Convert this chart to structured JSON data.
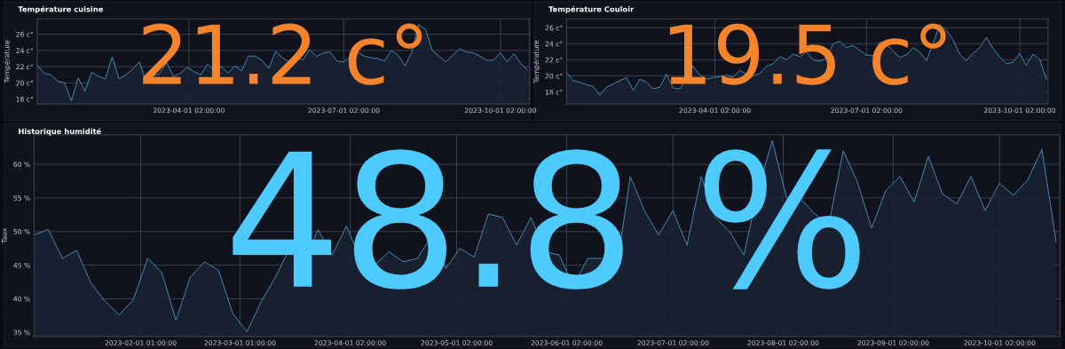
{
  "chart_data": [
    {
      "type": "area",
      "title": "Température cuisine",
      "ylabel": "Température",
      "annotations": [
        "21.2 c°"
      ],
      "x": [
        "2023-01-02",
        "2023-01-06",
        "2023-01-10",
        "2023-01-14",
        "2023-01-18",
        "2023-01-22",
        "2023-01-26",
        "2023-01-30",
        "2023-02-03",
        "2023-02-07",
        "2023-02-11",
        "2023-02-15",
        "2023-02-19",
        "2023-02-23",
        "2023-02-27",
        "2023-03-03",
        "2023-03-07",
        "2023-03-11",
        "2023-03-15",
        "2023-03-19",
        "2023-03-23",
        "2023-03-27",
        "2023-03-31",
        "2023-04-04",
        "2023-04-08",
        "2023-04-12",
        "2023-04-16",
        "2023-04-20",
        "2023-04-24",
        "2023-04-28",
        "2023-05-02",
        "2023-05-06",
        "2023-05-10",
        "2023-05-14",
        "2023-05-18",
        "2023-05-22",
        "2023-05-26",
        "2023-05-30",
        "2023-06-03",
        "2023-06-07",
        "2023-06-11",
        "2023-06-15",
        "2023-06-19",
        "2023-06-23",
        "2023-06-27",
        "2023-07-01",
        "2023-07-05",
        "2023-07-09",
        "2023-07-13",
        "2023-07-17",
        "2023-07-21",
        "2023-07-25",
        "2023-07-29",
        "2023-08-02",
        "2023-08-06",
        "2023-08-10",
        "2023-08-14",
        "2023-08-18",
        "2023-08-22",
        "2023-08-26",
        "2023-08-30",
        "2023-09-03",
        "2023-09-07",
        "2023-09-11",
        "2023-09-15",
        "2023-09-19",
        "2023-09-23",
        "2023-09-27",
        "2023-10-01",
        "2023-10-05",
        "2023-10-09",
        "2023-10-13",
        "2023-10-17"
      ],
      "series": [
        {
          "color": "#4a9fd0",
          "values": [
            22.2,
            21.2,
            21.0,
            20.2,
            20.0,
            17.8,
            20.6,
            19.0,
            21.3,
            20.8,
            20.5,
            23.2,
            20.5,
            21.0,
            21.7,
            22.6,
            20.0,
            20.8,
            21.2,
            22.5,
            20.8,
            21.2,
            21.9,
            21.4,
            21.0,
            22.3,
            21.5,
            22.0,
            21.2,
            22.1,
            21.5,
            23.3,
            23.3,
            22.8,
            21.8,
            23.9,
            23.1,
            22.6,
            23.2,
            22.8,
            24.1,
            23.3,
            23.7,
            23.8,
            22.7,
            22.6,
            23.2,
            23.8,
            23.3,
            23.1,
            23.0,
            22.7,
            24.0,
            23.4,
            22.1,
            23.8,
            27.2,
            26.6,
            24.0,
            23.3,
            22.6,
            23.4,
            24.2,
            23.8,
            23.7,
            23.3,
            22.8,
            22.8,
            23.7,
            22.6,
            23.6,
            22.4,
            21.6
          ]
        }
      ],
      "xlim": [
        "2023-01-02",
        "2023-10-18"
      ],
      "xticks": [
        {
          "value": "2023-04-01T02:00",
          "label": "2023-04-01 02:00:00"
        },
        {
          "value": "2023-07-01T02:00",
          "label": "2023-07-01 02:00:00"
        },
        {
          "value": "2023-10-01T02:00",
          "label": "2023-10-01 02:00:00"
        }
      ],
      "ylim": [
        17.4,
        27.9
      ],
      "yticks": [
        {
          "value": 18,
          "label": "18 c°"
        },
        {
          "value": 20,
          "label": "20 c°"
        },
        {
          "value": 22,
          "label": "22 c°"
        },
        {
          "value": 24,
          "label": "24 c°"
        },
        {
          "value": 26,
          "label": "26 c°"
        }
      ],
      "grid": true
    },
    {
      "type": "area",
      "title": "Température Couloir",
      "ylabel": "Température",
      "annotations": [
        "19.5 c°"
      ],
      "x": [
        "2023-01-02",
        "2023-01-06",
        "2023-01-10",
        "2023-01-14",
        "2023-01-18",
        "2023-01-22",
        "2023-01-26",
        "2023-01-30",
        "2023-02-03",
        "2023-02-07",
        "2023-02-11",
        "2023-02-15",
        "2023-02-19",
        "2023-02-23",
        "2023-02-27",
        "2023-03-03",
        "2023-03-07",
        "2023-03-11",
        "2023-03-15",
        "2023-03-19",
        "2023-03-23",
        "2023-03-27",
        "2023-03-31",
        "2023-04-04",
        "2023-04-08",
        "2023-04-12",
        "2023-04-16",
        "2023-04-20",
        "2023-04-24",
        "2023-04-28",
        "2023-05-02",
        "2023-05-06",
        "2023-05-10",
        "2023-05-14",
        "2023-05-18",
        "2023-05-22",
        "2023-05-26",
        "2023-05-30",
        "2023-06-03",
        "2023-06-07",
        "2023-06-11",
        "2023-06-15",
        "2023-06-19",
        "2023-06-23",
        "2023-06-27",
        "2023-07-01",
        "2023-07-05",
        "2023-07-09",
        "2023-07-13",
        "2023-07-17",
        "2023-07-21",
        "2023-07-25",
        "2023-07-29",
        "2023-08-02",
        "2023-08-06",
        "2023-08-10",
        "2023-08-14",
        "2023-08-18",
        "2023-08-22",
        "2023-08-26",
        "2023-08-30",
        "2023-09-03",
        "2023-09-07",
        "2023-09-11",
        "2023-09-15",
        "2023-09-19",
        "2023-09-23",
        "2023-09-27",
        "2023-10-01",
        "2023-10-05",
        "2023-10-09",
        "2023-10-13",
        "2023-10-17"
      ],
      "series": [
        {
          "color": "#4a9fd0",
          "values": [
            20.4,
            19.4,
            19.2,
            18.9,
            18.7,
            17.6,
            18.6,
            19.0,
            19.4,
            19.8,
            18.2,
            19.6,
            19.2,
            18.4,
            18.6,
            20.2,
            18.5,
            18.4,
            19.6,
            21.2,
            20.1,
            19.6,
            19.8,
            19.9,
            20.1,
            19.8,
            20.7,
            20.2,
            20.0,
            20.3,
            21.2,
            21.5,
            22.4,
            22.0,
            22.7,
            22.4,
            23.0,
            22.0,
            21.8,
            22.2,
            24.0,
            24.3,
            23.5,
            23.8,
            23.2,
            22.6,
            22.5,
            24.2,
            24.0,
            23.1,
            22.3,
            22.6,
            23.5,
            23.0,
            21.9,
            24.0,
            26.4,
            25.7,
            24.5,
            22.7,
            21.9,
            22.8,
            23.5,
            24.8,
            23.4,
            22.4,
            21.5,
            21.7,
            22.8,
            21.3,
            22.7,
            22.1,
            19.6
          ]
        }
      ],
      "xlim": [
        "2023-01-02",
        "2023-10-18"
      ],
      "xticks": [
        {
          "value": "2023-04-01T02:00",
          "label": "2023-04-01 02:00:00"
        },
        {
          "value": "2023-07-01T02:00",
          "label": "2023-07-01 02:00:00"
        },
        {
          "value": "2023-10-01T02:00",
          "label": "2023-10-01 02:00:00"
        }
      ],
      "ylim": [
        16.5,
        27.1
      ],
      "yticks": [
        {
          "value": 18,
          "label": "18 c°"
        },
        {
          "value": 20,
          "label": "20 c°"
        },
        {
          "value": 22,
          "label": "22 c°"
        },
        {
          "value": 24,
          "label": "24 c°"
        },
        {
          "value": 26,
          "label": "26 c°"
        }
      ],
      "grid": true
    },
    {
      "type": "area",
      "title": "Historique humidité",
      "ylabel": "Taux",
      "annotations": [
        "48.8 %"
      ],
      "x": [
        "2023-01-02",
        "2023-01-06",
        "2023-01-10",
        "2023-01-14",
        "2023-01-18",
        "2023-01-22",
        "2023-01-26",
        "2023-01-30",
        "2023-02-03",
        "2023-02-07",
        "2023-02-11",
        "2023-02-15",
        "2023-02-19",
        "2023-02-23",
        "2023-02-27",
        "2023-03-03",
        "2023-03-07",
        "2023-03-11",
        "2023-03-15",
        "2023-03-19",
        "2023-03-23",
        "2023-03-27",
        "2023-03-31",
        "2023-04-04",
        "2023-04-08",
        "2023-04-12",
        "2023-04-16",
        "2023-04-20",
        "2023-04-24",
        "2023-04-28",
        "2023-05-02",
        "2023-05-06",
        "2023-05-10",
        "2023-05-14",
        "2023-05-18",
        "2023-05-22",
        "2023-05-26",
        "2023-05-30",
        "2023-06-03",
        "2023-06-07",
        "2023-06-11",
        "2023-06-15",
        "2023-06-19",
        "2023-06-23",
        "2023-06-27",
        "2023-07-01",
        "2023-07-05",
        "2023-07-09",
        "2023-07-13",
        "2023-07-17",
        "2023-07-21",
        "2023-07-25",
        "2023-07-29",
        "2023-08-02",
        "2023-08-06",
        "2023-08-10",
        "2023-08-14",
        "2023-08-18",
        "2023-08-22",
        "2023-08-26",
        "2023-08-30",
        "2023-09-03",
        "2023-09-07",
        "2023-09-11",
        "2023-09-15",
        "2023-09-19",
        "2023-09-23",
        "2023-09-27",
        "2023-10-01",
        "2023-10-05",
        "2023-10-09",
        "2023-10-13",
        "2023-10-17"
      ],
      "series": [
        {
          "color": "#4a9fd0",
          "values": [
            49.5,
            50.3,
            46.0,
            47.2,
            42.4,
            39.6,
            37.6,
            39.9,
            46.0,
            43.9,
            36.8,
            43.2,
            45.5,
            44.2,
            37.8,
            35.1,
            39.6,
            43.2,
            47.5,
            45.0,
            50.3,
            46.5,
            50.8,
            46.0,
            45.0,
            47.0,
            45.5,
            46.0,
            49.3,
            44.5,
            47.5,
            46.2,
            52.6,
            52.1,
            48.0,
            52.1,
            47.0,
            46.5,
            41.9,
            46.0,
            46.0,
            43.9,
            58.2,
            53.1,
            49.5,
            53.1,
            48.0,
            58.2,
            52.1,
            50.0,
            46.5,
            56.1,
            63.5,
            55.1,
            54.9,
            52.6,
            51.1,
            62.0,
            57.4,
            50.5,
            56.1,
            58.2,
            54.4,
            61.2,
            55.6,
            54.1,
            58.2,
            53.1,
            57.2,
            55.4,
            57.7,
            62.2,
            48.5
          ]
        }
      ],
      "xlim": [
        "2023-01-02",
        "2023-10-18"
      ],
      "xticks": [
        {
          "value": "2023-02-01T01:00",
          "label": "2023-02-01 01:00:00"
        },
        {
          "value": "2023-03-01T01:00",
          "label": "2023-03-01 01:00:00"
        },
        {
          "value": "2023-04-01T02:00",
          "label": "2023-04-01 02:00:00"
        },
        {
          "value": "2023-05-01T02:00",
          "label": "2023-05-01 02:00:00"
        },
        {
          "value": "2023-06-01T02:00",
          "label": "2023-06-01 02:00:00"
        },
        {
          "value": "2023-07-01T02:00",
          "label": "2023-07-01 02:00:00"
        },
        {
          "value": "2023-08-01T02:00",
          "label": "2023-08-01 02:00:00"
        },
        {
          "value": "2023-09-01T02:00",
          "label": "2023-09-01 02:00:00"
        },
        {
          "value": "2023-10-01T02:00",
          "label": "2023-10-01 02:00:00"
        }
      ],
      "ylim": [
        34.4,
        64.4
      ],
      "yticks": [
        {
          "value": 35,
          "label": "35 %"
        },
        {
          "value": 40,
          "label": "40 %"
        },
        {
          "value": 45,
          "label": "45 %"
        },
        {
          "value": 50,
          "label": "50 %"
        },
        {
          "value": 55,
          "label": "55 %"
        },
        {
          "value": 60,
          "label": "60 %"
        }
      ],
      "grid": true
    }
  ]
}
